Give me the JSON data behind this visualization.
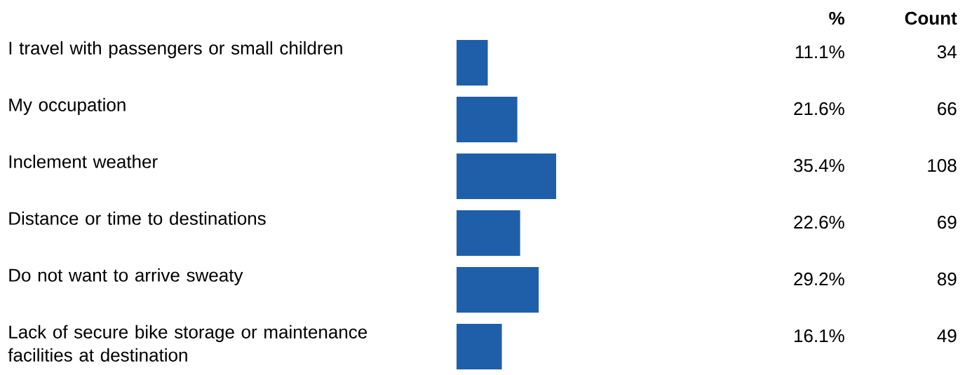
{
  "chart_data": {
    "type": "bar",
    "orientation": "horizontal",
    "categories": [
      "I travel with passengers or small children",
      "My occupation",
      "Inclement weather",
      "Distance or time to destinations",
      "Do not want to arrive sweaty",
      "Lack of secure bike storage or maintenance facilities at destination"
    ],
    "series": [
      {
        "color": "#1f5fa9",
        "values": [
          11.1,
          21.6,
          35.4,
          22.6,
          29.2,
          16.1
        ],
        "value_labels": [
          "11.1%",
          "21.6%",
          "35.4%",
          "22.6%",
          "29.2%",
          "16.1%"
        ]
      }
    ],
    "annotations": [
      "%",
      "Count",
      "34",
      "66",
      "108",
      "69",
      "89",
      "49"
    ]
  }
}
